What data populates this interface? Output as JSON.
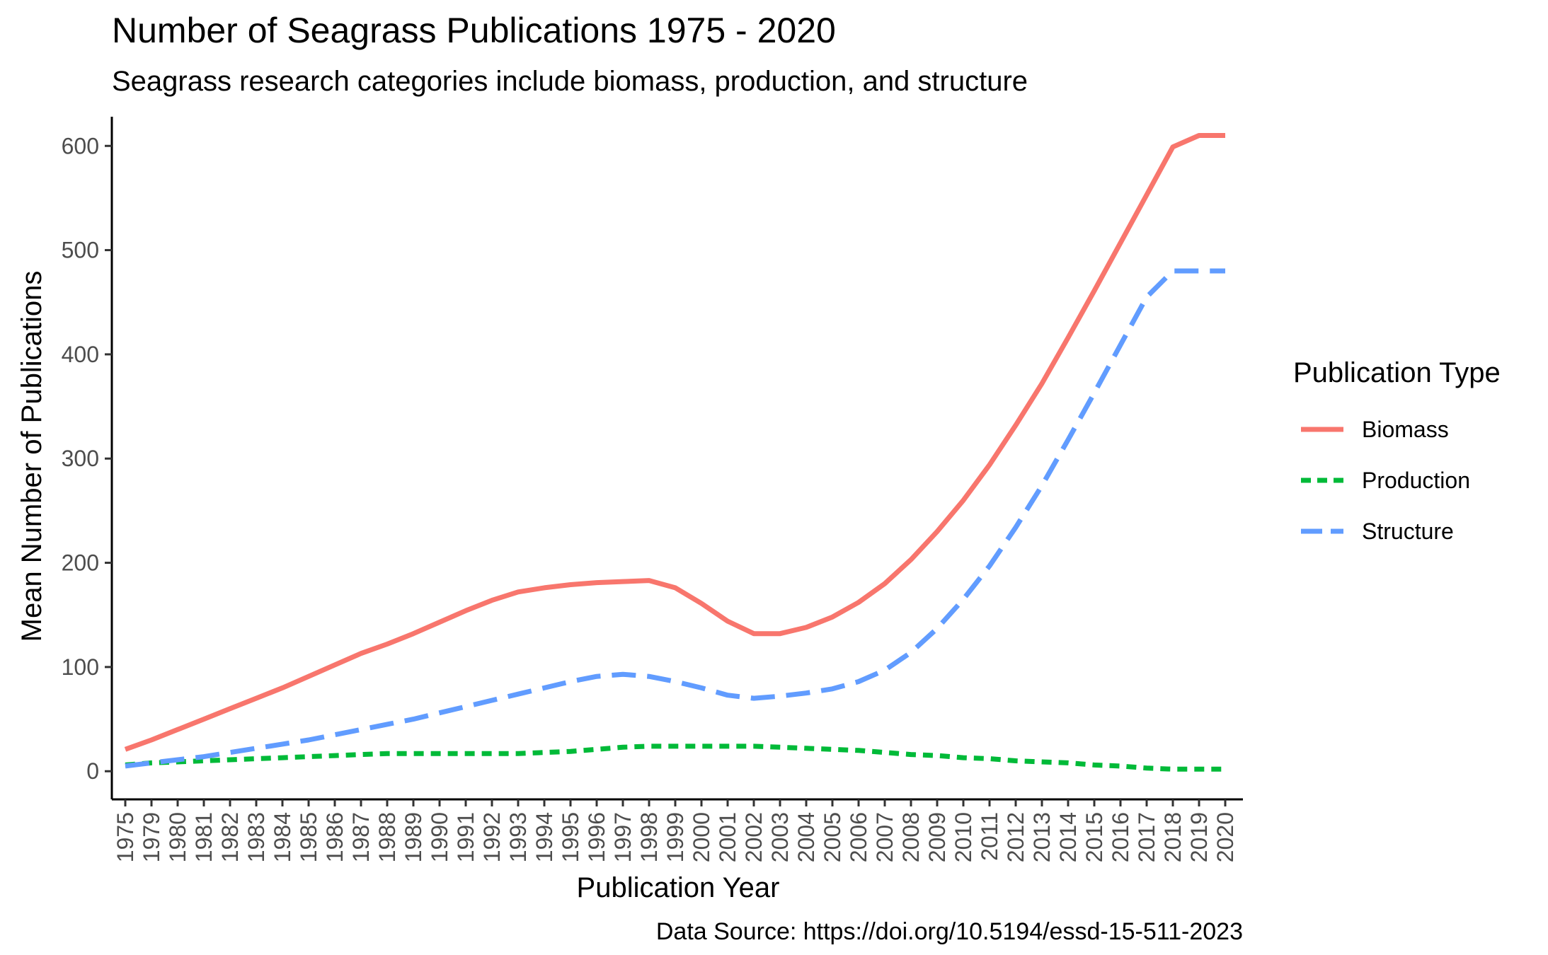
{
  "chart_data": {
    "type": "line",
    "title": "Number of Seagrass Publications 1975 - 2020",
    "subtitle": "Seagrass research categories include biomass, production, and structure",
    "xlabel": "Publication Year",
    "ylabel": "Mean Number of Publications",
    "caption": "Data Source: https://doi.org/10.5194/essd-15-511-2023",
    "legend_title": "Publication Type",
    "legend_position": "right",
    "grid": false,
    "ylim": [
      -27,
      628
    ],
    "y_ticks": [
      "0",
      "100",
      "200",
      "300",
      "400",
      "500",
      "600"
    ],
    "categories": [
      "1975",
      "1979",
      "1980",
      "1981",
      "1982",
      "1983",
      "1984",
      "1985",
      "1986",
      "1987",
      "1988",
      "1989",
      "1990",
      "1991",
      "1992",
      "1993",
      "1994",
      "1995",
      "1996",
      "1997",
      "1998",
      "1999",
      "2000",
      "2001",
      "2002",
      "2003",
      "2004",
      "2005",
      "2006",
      "2007",
      "2008",
      "2009",
      "2010",
      "2011",
      "2012",
      "2013",
      "2014",
      "2015",
      "2016",
      "2017",
      "2018",
      "2019",
      "2020"
    ],
    "series": [
      {
        "name": "Biomass",
        "color": "#F8766D",
        "linestyle": "solid",
        "values": [
          21,
          30,
          40,
          50,
          60,
          70,
          80,
          91,
          102,
          113,
          122,
          132,
          143,
          154,
          164,
          172,
          176,
          179,
          181,
          182,
          183,
          176,
          161,
          144,
          132,
          132,
          138,
          148,
          162,
          180,
          203,
          230,
          260,
          294,
          332,
          372,
          416,
          461,
          507,
          553,
          599,
          610,
          610
        ]
      },
      {
        "name": "Production",
        "color": "#00BA38",
        "linestyle": "dotted",
        "values": [
          6,
          8,
          9,
          10,
          11,
          12,
          13,
          14,
          15,
          16,
          17,
          17,
          17,
          17,
          17,
          17,
          18,
          19,
          21,
          23,
          24,
          24,
          24,
          24,
          24,
          23,
          22,
          21,
          20,
          18,
          16,
          15,
          13,
          12,
          10,
          9,
          8,
          6,
          5,
          3,
          2,
          2,
          2
        ]
      },
      {
        "name": "Structure",
        "color": "#619CFF",
        "linestyle": "dashed",
        "values": [
          5,
          8,
          11,
          14,
          18,
          22,
          26,
          30,
          35,
          40,
          45,
          50,
          56,
          62,
          68,
          74,
          80,
          86,
          91,
          93,
          91,
          86,
          80,
          73,
          70,
          72,
          75,
          79,
          86,
          97,
          114,
          137,
          165,
          197,
          234,
          274,
          318,
          363,
          409,
          455,
          480,
          480,
          480
        ]
      }
    ]
  }
}
